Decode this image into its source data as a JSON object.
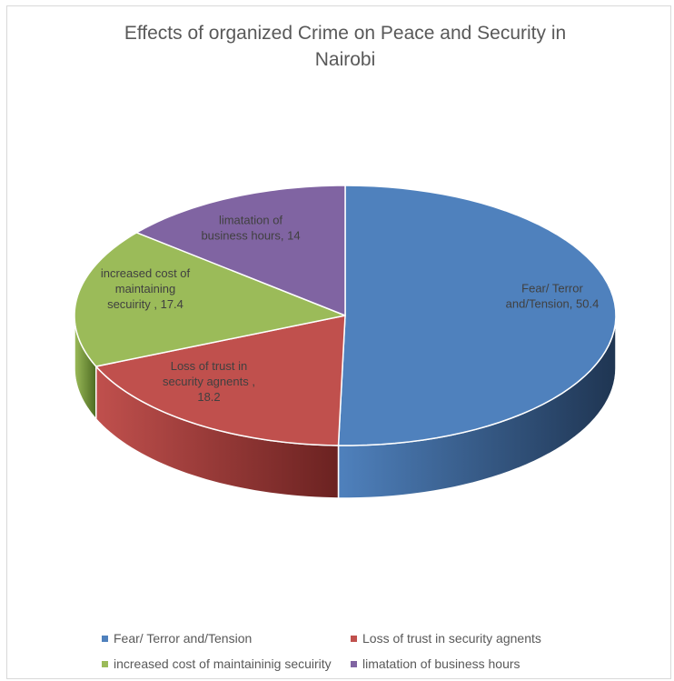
{
  "chart_data": {
    "type": "pie",
    "title_line1": "Effects of organized Crime on Peace and Security in",
    "title_line2": "Nairobi",
    "slices": [
      {
        "name": "Fear/ Terror and/Tension",
        "value": 50.4,
        "color": "#4f81bd",
        "dark": "#1f3552",
        "label_lines": [
          "Fear/ Terror",
          "and/Tension, 50.4"
        ]
      },
      {
        "name": "Loss of trust in security agnents",
        "value": 18.2,
        "color": "#c0504d",
        "dark": "#6b2221",
        "label_lines": [
          "Loss of trust in",
          "security agnents ,",
          "18.2"
        ]
      },
      {
        "name": "increased cost of maintainig secuirity",
        "value": 17.4,
        "color": "#9bbb59",
        "dark": "#4d6b22",
        "label_lines": [
          "increased cost of",
          "maintaining",
          "secuirity , 17.4"
        ]
      },
      {
        "name": "limatation of business hours",
        "value": 14,
        "color": "#8064a2",
        "dark": "#3f2f55",
        "label_lines": [
          "limatation of",
          "business hours, 14"
        ]
      }
    ],
    "legend": [
      "Fear/ Terror and/Tension",
      "Loss of trust in security agnents",
      "increased cost of maintaininig secuirity",
      "limatation of business hours"
    ],
    "legend_position": "bottom"
  }
}
